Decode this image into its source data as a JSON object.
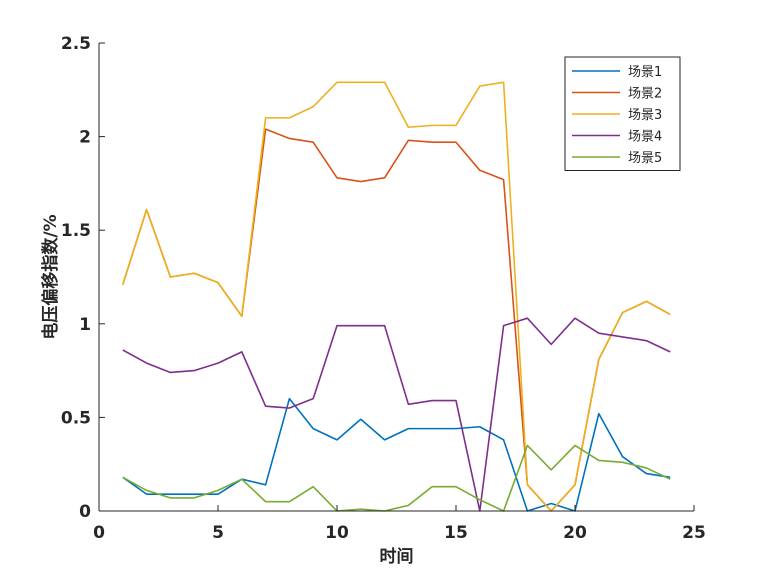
{
  "chart_data": {
    "type": "line",
    "title": "",
    "xlabel": "时间",
    "ylabel": "电压偏移指数/%",
    "xlim": [
      0,
      25
    ],
    "ylim": [
      0,
      2.5
    ],
    "xticks": [
      0,
      5,
      10,
      15,
      20,
      25
    ],
    "xtick_labels": [
      "0",
      "5",
      "10",
      "15",
      "20",
      "25"
    ],
    "yticks": [
      0,
      0.5,
      1,
      1.5,
      2,
      2.5
    ],
    "ytick_labels": [
      "0",
      "0.5",
      "1",
      "1.5",
      "2",
      "2.5"
    ],
    "grid": false,
    "legend_position": "top-right",
    "x": [
      1,
      2,
      3,
      4,
      5,
      6,
      7,
      8,
      9,
      10,
      11,
      12,
      13,
      14,
      15,
      16,
      17,
      18,
      19,
      20,
      21,
      22,
      23,
      24
    ],
    "series": [
      {
        "name": "场景1",
        "color": "#0072BD",
        "values": [
          0.18,
          0.09,
          0.09,
          0.09,
          0.09,
          0.17,
          0.14,
          0.6,
          0.44,
          0.38,
          0.49,
          0.38,
          0.44,
          0.44,
          0.44,
          0.45,
          0.38,
          0.0,
          0.04,
          0.0,
          0.52,
          0.29,
          0.2,
          0.18
        ]
      },
      {
        "name": "场景2",
        "color": "#D95319",
        "values": [
          1.21,
          1.61,
          1.25,
          1.27,
          1.22,
          1.04,
          2.04,
          1.99,
          1.97,
          1.78,
          1.76,
          1.78,
          1.98,
          1.97,
          1.97,
          1.82,
          1.77,
          0.14,
          0.0,
          0.14,
          0.81,
          1.06,
          1.12,
          1.05
        ]
      },
      {
        "name": "场景3",
        "color": "#EDB120",
        "values": [
          1.21,
          1.61,
          1.25,
          1.27,
          1.22,
          1.04,
          2.1,
          2.1,
          2.16,
          2.29,
          2.29,
          2.29,
          2.05,
          2.06,
          2.06,
          2.27,
          2.29,
          0.14,
          0.0,
          0.14,
          0.81,
          1.06,
          1.12,
          1.05
        ]
      },
      {
        "name": "场景4",
        "color": "#7E2F8E",
        "values": [
          0.86,
          0.79,
          0.74,
          0.75,
          0.79,
          0.85,
          0.56,
          0.55,
          0.6,
          0.99,
          0.99,
          0.99,
          0.57,
          0.59,
          0.59,
          0.0,
          0.99,
          1.03,
          0.89,
          1.03,
          0.95,
          0.93,
          0.91,
          0.85
        ]
      },
      {
        "name": "场景5",
        "color": "#77AC30",
        "values": [
          0.18,
          0.11,
          0.07,
          0.07,
          0.11,
          0.17,
          0.05,
          0.05,
          0.13,
          0.0,
          0.01,
          0.0,
          0.03,
          0.13,
          0.13,
          0.06,
          0.0,
          0.35,
          0.22,
          0.35,
          0.27,
          0.26,
          0.23,
          0.17
        ]
      }
    ]
  }
}
